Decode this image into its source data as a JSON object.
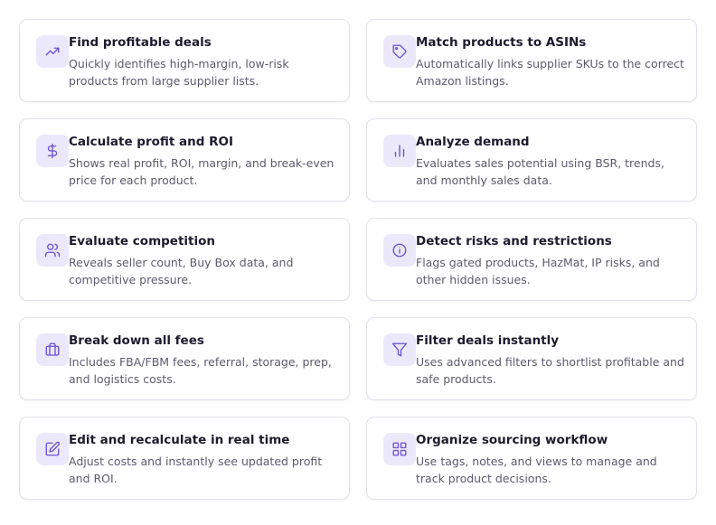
{
  "colors": {
    "accent": "#6b4fd6",
    "icon_bg": "#ece8fb",
    "title": "#1d1a2e",
    "description": "#5d5a6b",
    "border": "#e2e0ea"
  },
  "features": [
    {
      "icon": "trending-up-icon",
      "title": "Find profitable deals",
      "description": "Quickly identifies high-margin, low-risk products from large supplier lists."
    },
    {
      "icon": "tag-icon",
      "title": "Match products to ASINs",
      "description": "Automatically links supplier SKUs to the correct Amazon listings."
    },
    {
      "icon": "dollar-icon",
      "title": "Calculate profit and ROI",
      "description": "Shows real profit, ROI, margin, and break-even price for each product."
    },
    {
      "icon": "bar-chart-icon",
      "title": "Analyze demand",
      "description": "Evaluates sales potential using BSR, trends, and monthly sales data."
    },
    {
      "icon": "users-icon",
      "title": "Evaluate competition",
      "description": "Reveals seller count, Buy Box data, and competitive pressure."
    },
    {
      "icon": "info-icon",
      "title": "Detect risks and restrictions",
      "description": "Flags gated products, HazMat, IP risks, and other hidden issues."
    },
    {
      "icon": "briefcase-icon",
      "title": "Break down all fees",
      "description": "Includes FBA/FBM fees, referral, storage, prep, and logistics costs."
    },
    {
      "icon": "filter-icon",
      "title": "Filter deals instantly",
      "description": "Uses advanced filters to shortlist profitable and safe products."
    },
    {
      "icon": "edit-icon",
      "title": "Edit and recalculate in real time",
      "description": "Adjust costs and instantly see updated profit and ROI."
    },
    {
      "icon": "grid-icon",
      "title": "Organize sourcing workflow",
      "description": "Use tags, notes, and views to manage and track product decisions."
    }
  ]
}
